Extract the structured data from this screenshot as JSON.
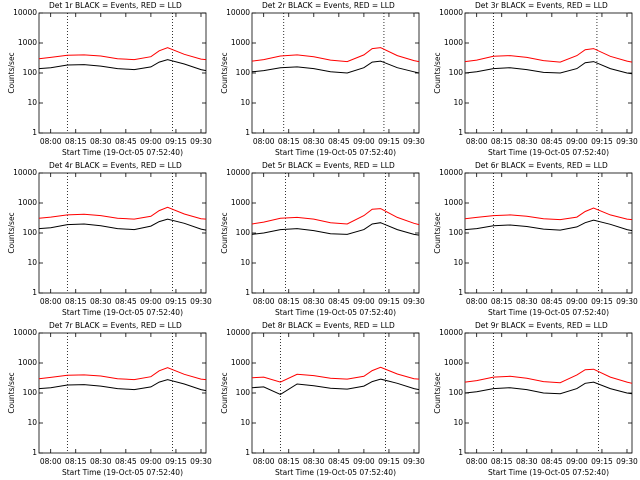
{
  "chart_data": [
    {
      "type": "line",
      "title": "Det 1r BLACK = Events, RED = LLD",
      "xlabel": "Start Time (19-Oct-05 07:52:40)",
      "ylabel": "Counts/sec",
      "log_y": true,
      "x": [
        "07:53",
        "08:00",
        "08:10",
        "08:20",
        "08:30",
        "08:40",
        "08:50",
        "09:00",
        "09:05",
        "09:10",
        "09:20",
        "09:30",
        "09:33"
      ],
      "series": [
        {
          "color": "#000000",
          "values": [
            140,
            150,
            185,
            190,
            170,
            140,
            130,
            160,
            230,
            280,
            200,
            130,
            120
          ]
        },
        {
          "color": "#ff0000",
          "values": [
            300,
            330,
            390,
            400,
            370,
            300,
            280,
            350,
            550,
            700,
            420,
            290,
            280
          ]
        }
      ],
      "markers": [
        "08:10",
        "09:13"
      ],
      "xlim": [
        "07:53",
        "09:33"
      ],
      "xticks": [
        "08:00",
        "08:15",
        "08:30",
        "08:45",
        "09:00",
        "09:15",
        "09:30"
      ],
      "ylim": [
        1,
        10000
      ],
      "yticks": [
        1,
        10,
        100,
        1000,
        10000
      ]
    },
    {
      "type": "line",
      "title": "Det 2r BLACK = Events, RED = LLD",
      "xlabel": "Start Time (19-Oct-05 07:52:40)",
      "ylabel": "Counts/sec",
      "log_y": true,
      "x": [
        "07:53",
        "08:00",
        "08:10",
        "08:20",
        "08:30",
        "08:40",
        "08:50",
        "09:00",
        "09:05",
        "09:10",
        "09:20",
        "09:30",
        "09:33"
      ],
      "series": [
        {
          "color": "#000000",
          "values": [
            110,
            120,
            150,
            160,
            140,
            110,
            100,
            150,
            230,
            250,
            150,
            110,
            100
          ]
        },
        {
          "color": "#ff0000",
          "values": [
            250,
            280,
            370,
            400,
            350,
            270,
            240,
            400,
            650,
            700,
            380,
            260,
            240
          ]
        }
      ],
      "markers": [
        "08:12",
        "09:12"
      ],
      "xlim": [
        "07:53",
        "09:33"
      ],
      "xticks": [
        "08:00",
        "08:15",
        "08:30",
        "08:45",
        "09:00",
        "09:15",
        "09:30"
      ],
      "ylim": [
        1,
        10000
      ],
      "yticks": [
        1,
        10,
        100,
        1000,
        10000
      ]
    },
    {
      "type": "line",
      "title": "Det 3r BLACK = Events, RED = LLD",
      "xlabel": "Start Time (19-Oct-05 07:52:40)",
      "ylabel": "Counts/sec",
      "log_y": true,
      "x": [
        "07:53",
        "08:00",
        "08:10",
        "08:20",
        "08:30",
        "08:40",
        "08:50",
        "09:00",
        "09:05",
        "09:10",
        "09:20",
        "09:30",
        "09:33"
      ],
      "series": [
        {
          "color": "#000000",
          "values": [
            100,
            110,
            140,
            150,
            130,
            105,
            100,
            140,
            220,
            240,
            140,
            100,
            95
          ]
        },
        {
          "color": "#ff0000",
          "values": [
            240,
            270,
            360,
            380,
            330,
            260,
            230,
            380,
            600,
            650,
            360,
            250,
            230
          ]
        }
      ],
      "markers": [
        "08:10",
        "09:12"
      ],
      "xlim": [
        "07:53",
        "09:33"
      ],
      "xticks": [
        "08:00",
        "08:15",
        "08:30",
        "08:45",
        "09:00",
        "09:15",
        "09:30"
      ],
      "ylim": [
        1,
        10000
      ],
      "yticks": [
        1,
        10,
        100,
        1000,
        10000
      ]
    },
    {
      "type": "line",
      "title": "Det 4r BLACK = Events, RED = LLD",
      "xlabel": "Start Time (19-Oct-05 07:52:40)",
      "ylabel": "Counts/sec",
      "log_y": true,
      "x": [
        "07:53",
        "08:00",
        "08:10",
        "08:20",
        "08:30",
        "08:40",
        "08:50",
        "09:00",
        "09:05",
        "09:10",
        "09:20",
        "09:30",
        "09:33"
      ],
      "series": [
        {
          "color": "#000000",
          "values": [
            140,
            150,
            190,
            200,
            175,
            140,
            130,
            170,
            240,
            290,
            210,
            135,
            125
          ]
        },
        {
          "color": "#ff0000",
          "values": [
            310,
            340,
            400,
            420,
            380,
            310,
            290,
            360,
            560,
            720,
            430,
            300,
            290
          ]
        }
      ],
      "markers": [
        "08:10",
        "09:13"
      ],
      "xlim": [
        "07:53",
        "09:33"
      ],
      "xticks": [
        "08:00",
        "08:15",
        "08:30",
        "08:45",
        "09:00",
        "09:15",
        "09:30"
      ],
      "ylim": [
        1,
        10000
      ],
      "yticks": [
        1,
        10,
        100,
        1000,
        10000
      ]
    },
    {
      "type": "line",
      "title": "Det 5r BLACK = Events, RED = LLD",
      "xlabel": "Start Time (19-Oct-05 07:52:40)",
      "ylabel": "Counts/sec",
      "log_y": true,
      "x": [
        "07:53",
        "08:00",
        "08:10",
        "08:20",
        "08:30",
        "08:40",
        "08:50",
        "09:00",
        "09:05",
        "09:10",
        "09:20",
        "09:30",
        "09:33"
      ],
      "series": [
        {
          "color": "#000000",
          "values": [
            90,
            100,
            130,
            140,
            120,
            95,
            90,
            130,
            200,
            220,
            130,
            90,
            85
          ]
        },
        {
          "color": "#ff0000",
          "values": [
            200,
            230,
            310,
            330,
            290,
            220,
            200,
            380,
            620,
            650,
            330,
            210,
            190
          ]
        }
      ],
      "markers": [
        "08:13",
        "09:13"
      ],
      "xlim": [
        "07:53",
        "09:33"
      ],
      "xticks": [
        "08:00",
        "08:15",
        "08:30",
        "08:45",
        "09:00",
        "09:15",
        "09:30"
      ],
      "ylim": [
        1,
        10000
      ],
      "yticks": [
        1,
        10,
        100,
        1000,
        10000
      ]
    },
    {
      "type": "line",
      "title": "Det 6r BLACK = Events, RED = LLD",
      "xlabel": "Start Time (19-Oct-05 07:52:40)",
      "ylabel": "Counts/sec",
      "log_y": true,
      "x": [
        "07:53",
        "08:00",
        "08:10",
        "08:20",
        "08:30",
        "08:40",
        "08:50",
        "09:00",
        "09:05",
        "09:10",
        "09:20",
        "09:30",
        "09:33"
      ],
      "series": [
        {
          "color": "#000000",
          "values": [
            130,
            140,
            175,
            185,
            165,
            135,
            125,
            160,
            220,
            270,
            195,
            130,
            120
          ]
        },
        {
          "color": "#ff0000",
          "values": [
            300,
            330,
            380,
            400,
            360,
            300,
            280,
            340,
            520,
            680,
            400,
            290,
            280
          ]
        }
      ],
      "markers": [
        "08:10",
        "09:13"
      ],
      "xlim": [
        "07:53",
        "09:33"
      ],
      "xticks": [
        "08:00",
        "08:15",
        "08:30",
        "08:45",
        "09:00",
        "09:15",
        "09:30"
      ],
      "ylim": [
        1,
        10000
      ],
      "yticks": [
        1,
        10,
        100,
        1000,
        10000
      ]
    },
    {
      "type": "line",
      "title": "Det 7r BLACK = Events, RED = LLD",
      "xlabel": "Start Time (19-Oct-05 07:52:40)",
      "ylabel": "Counts/sec",
      "log_y": true,
      "x": [
        "07:53",
        "08:00",
        "08:10",
        "08:20",
        "08:30",
        "08:40",
        "08:50",
        "09:00",
        "09:05",
        "09:10",
        "09:20",
        "09:30",
        "09:33"
      ],
      "series": [
        {
          "color": "#000000",
          "values": [
            140,
            150,
            185,
            190,
            170,
            140,
            130,
            160,
            230,
            280,
            200,
            130,
            120
          ]
        },
        {
          "color": "#ff0000",
          "values": [
            300,
            330,
            390,
            400,
            370,
            300,
            280,
            350,
            550,
            700,
            420,
            290,
            280
          ]
        }
      ],
      "markers": [
        "08:10",
        "09:13"
      ],
      "xlim": [
        "07:53",
        "09:33"
      ],
      "xticks": [
        "08:00",
        "08:15",
        "08:30",
        "08:45",
        "09:00",
        "09:15",
        "09:30"
      ],
      "ylim": [
        1,
        10000
      ],
      "yticks": [
        1,
        10,
        100,
        1000,
        10000
      ]
    },
    {
      "type": "line",
      "title": "Det 8r BLACK = Events, RED = LLD",
      "xlabel": "Start Time (19-Oct-05 07:52:40)",
      "ylabel": "Counts/sec",
      "log_y": true,
      "x": [
        "07:53",
        "08:00",
        "08:10",
        "08:20",
        "08:30",
        "08:40",
        "08:50",
        "09:00",
        "09:05",
        "09:10",
        "09:20",
        "09:30",
        "09:33"
      ],
      "series": [
        {
          "color": "#000000",
          "values": [
            150,
            160,
            90,
            200,
            175,
            145,
            135,
            170,
            240,
            290,
            210,
            140,
            130
          ]
        },
        {
          "color": "#ff0000",
          "values": [
            320,
            340,
            230,
            420,
            380,
            310,
            290,
            360,
            560,
            720,
            430,
            300,
            290
          ]
        }
      ],
      "markers": [
        "08:10",
        "09:13"
      ],
      "xlim": [
        "07:53",
        "09:33"
      ],
      "xticks": [
        "08:00",
        "08:15",
        "08:30",
        "08:45",
        "09:00",
        "09:15",
        "09:30"
      ],
      "ylim": [
        1,
        10000
      ],
      "yticks": [
        1,
        10,
        100,
        1000,
        10000
      ]
    },
    {
      "type": "line",
      "title": "Det 9r BLACK = Events, RED = LLD",
      "xlabel": "Start Time (19-Oct-05 07:52:40)",
      "ylabel": "Counts/sec",
      "log_y": true,
      "x": [
        "07:53",
        "08:00",
        "08:10",
        "08:20",
        "08:30",
        "08:40",
        "08:50",
        "09:00",
        "09:05",
        "09:10",
        "09:20",
        "09:30",
        "09:33"
      ],
      "series": [
        {
          "color": "#000000",
          "values": [
            100,
            110,
            140,
            150,
            130,
            100,
            95,
            140,
            210,
            230,
            140,
            100,
            95
          ]
        },
        {
          "color": "#ff0000",
          "values": [
            230,
            260,
            340,
            360,
            310,
            240,
            220,
            400,
            600,
            620,
            340,
            230,
            210
          ]
        }
      ],
      "markers": [
        "08:10",
        "09:13"
      ],
      "xlim": [
        "07:53",
        "09:33"
      ],
      "xticks": [
        "08:00",
        "08:15",
        "08:30",
        "08:45",
        "09:00",
        "09:15",
        "09:30"
      ],
      "ylim": [
        1,
        10000
      ],
      "yticks": [
        1,
        10,
        100,
        1000,
        10000
      ]
    }
  ]
}
